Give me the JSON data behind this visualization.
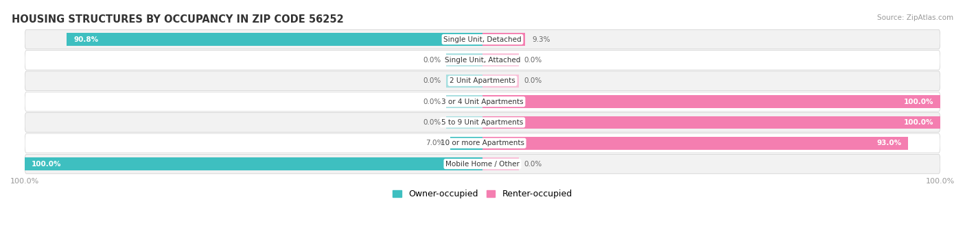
{
  "title": "HOUSING STRUCTURES BY OCCUPANCY IN ZIP CODE 56252",
  "source": "Source: ZipAtlas.com",
  "categories": [
    "Single Unit, Detached",
    "Single Unit, Attached",
    "2 Unit Apartments",
    "3 or 4 Unit Apartments",
    "5 to 9 Unit Apartments",
    "10 or more Apartments",
    "Mobile Home / Other"
  ],
  "owner_values": [
    90.8,
    0.0,
    0.0,
    0.0,
    0.0,
    7.0,
    100.0
  ],
  "renter_values": [
    9.3,
    0.0,
    0.0,
    100.0,
    100.0,
    93.0,
    0.0
  ],
  "owner_color": "#3ebfc0",
  "renter_color": "#f47eb0",
  "owner_color_light": "#a8dfe0",
  "renter_color_light": "#f9c0d8",
  "row_bg_even": "#f2f2f2",
  "row_bg_odd": "#ffffff",
  "label_color": "#666666",
  "title_color": "#333333",
  "source_color": "#999999",
  "legend_owner": "Owner-occupied",
  "legend_renter": "Renter-occupied",
  "bar_height": 0.62,
  "figsize": [
    14.06,
    3.42
  ],
  "dpi": 100
}
